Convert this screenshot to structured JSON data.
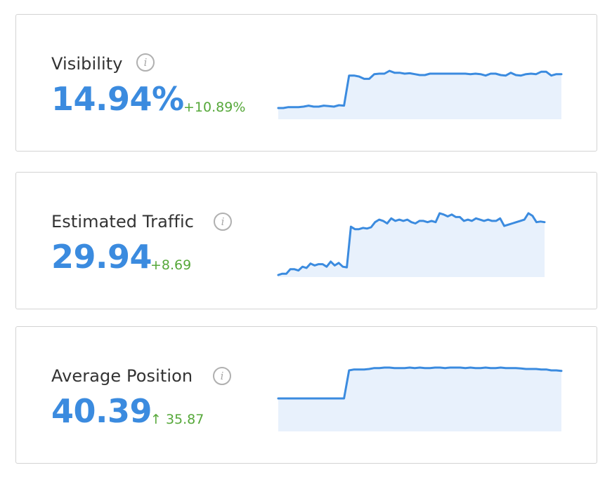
{
  "colors": {
    "accent": "#3b8bdf",
    "positive": "#56a83a",
    "fill": "#e8f1fc",
    "border": "#d3d3d3"
  },
  "cards": [
    {
      "label": "Visibility",
      "value": "14.94%",
      "delta": "+10.89%",
      "info_icon": "info-icon",
      "spark": [
        3,
        3,
        5,
        5,
        5,
        6,
        8,
        6,
        6,
        8,
        7,
        6,
        9,
        8,
        72,
        72,
        70,
        65,
        65,
        75,
        76,
        76,
        82,
        78,
        78,
        76,
        77,
        75,
        73,
        73,
        76,
        76,
        76,
        76,
        76,
        76,
        76,
        76,
        75,
        76,
        75,
        72,
        76,
        76,
        73,
        72,
        78,
        73,
        72,
        75,
        76,
        75,
        80,
        80,
        72,
        75,
        75
      ]
    },
    {
      "label": "Estimated Traffic",
      "value": "29.94",
      "delta": "+8.69",
      "info_icon": "info-icon",
      "spark": [
        3,
        5,
        5,
        12,
        12,
        10,
        16,
        14,
        21,
        18,
        20,
        20,
        16,
        24,
        18,
        22,
        16,
        15,
        79,
        75,
        75,
        77,
        76,
        78,
        86,
        90,
        88,
        84,
        92,
        88,
        90,
        88,
        90,
        86,
        84,
        88,
        88,
        86,
        88,
        86,
        100,
        98,
        95,
        98,
        94,
        94,
        88,
        90,
        88,
        92,
        90,
        88,
        90,
        88,
        88,
        92,
        80,
        82,
        84,
        86,
        88,
        90,
        100,
        96,
        86,
        87,
        86
      ]
    },
    {
      "label": "Average Position",
      "value": "40.39",
      "delta": "↑ 35.87",
      "info_icon": "info-icon",
      "spark": [
        8,
        8,
        8,
        8,
        8,
        8,
        8,
        8,
        8,
        8,
        8,
        8,
        8,
        8,
        68,
        70,
        70,
        70,
        71,
        73,
        73,
        74,
        74,
        73,
        73,
        73,
        74,
        73,
        74,
        73,
        73,
        74,
        74,
        73,
        74,
        74,
        74,
        73,
        74,
        73,
        73,
        74,
        73,
        73,
        74,
        73,
        73,
        73,
        72,
        71,
        71,
        71,
        70,
        70,
        68,
        68,
        67
      ]
    }
  ]
}
